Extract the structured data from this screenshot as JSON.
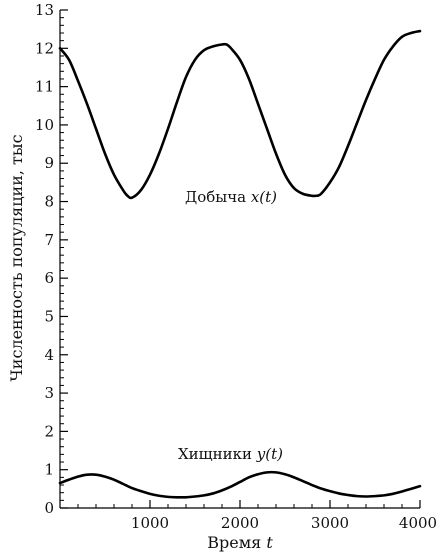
{
  "chart_data": {
    "type": "line",
    "title": "",
    "xlabel": "Время",
    "xlabel_var": "t",
    "ylabel": "Численность популяции, тыс",
    "xlim": [
      0,
      4000
    ],
    "ylim": [
      0,
      13
    ],
    "xticks": [
      1000,
      2000,
      3000,
      4000
    ],
    "yticks": [
      0,
      1,
      2,
      3,
      4,
      5,
      6,
      7,
      8,
      9,
      10,
      11,
      12,
      13
    ],
    "grid": false,
    "legend": "none",
    "series": [
      {
        "name": "Добыча",
        "name_var": "x(t)",
        "color": "#000000",
        "x": [
          0,
          100,
          200,
          300,
          400,
          500,
          600,
          700,
          750,
          800,
          900,
          1000,
          1100,
          1200,
          1300,
          1400,
          1500,
          1600,
          1700,
          1800,
          1850,
          1900,
          2000,
          2100,
          2200,
          2300,
          2400,
          2500,
          2600,
          2700,
          2800,
          2850,
          2900,
          3000,
          3100,
          3200,
          3300,
          3400,
          3500,
          3600,
          3700,
          3800,
          3900,
          4000
        ],
        "y": [
          12.0,
          11.7,
          11.15,
          10.55,
          9.9,
          9.25,
          8.7,
          8.3,
          8.15,
          8.1,
          8.3,
          8.7,
          9.25,
          9.9,
          10.6,
          11.25,
          11.7,
          11.95,
          12.05,
          12.1,
          12.1,
          12.0,
          11.7,
          11.2,
          10.55,
          9.9,
          9.25,
          8.7,
          8.35,
          8.2,
          8.15,
          8.15,
          8.2,
          8.5,
          8.9,
          9.45,
          10.05,
          10.65,
          11.2,
          11.7,
          12.05,
          12.3,
          12.4,
          12.45
        ]
      },
      {
        "name": "Хищники",
        "name_var": "y(t)",
        "color": "#000000",
        "x": [
          0,
          100,
          200,
          300,
          400,
          500,
          600,
          700,
          800,
          900,
          1000,
          1100,
          1200,
          1300,
          1400,
          1500,
          1600,
          1700,
          1800,
          1900,
          2000,
          2100,
          2200,
          2300,
          2400,
          2500,
          2600,
          2700,
          2800,
          2900,
          3000,
          3100,
          3200,
          3300,
          3400,
          3500,
          3600,
          3700,
          3800,
          3900,
          4000
        ],
        "y": [
          0.65,
          0.74,
          0.82,
          0.87,
          0.87,
          0.82,
          0.74,
          0.63,
          0.52,
          0.44,
          0.37,
          0.32,
          0.29,
          0.28,
          0.28,
          0.3,
          0.33,
          0.38,
          0.46,
          0.56,
          0.68,
          0.8,
          0.88,
          0.93,
          0.93,
          0.88,
          0.8,
          0.7,
          0.6,
          0.51,
          0.44,
          0.38,
          0.34,
          0.31,
          0.3,
          0.31,
          0.33,
          0.37,
          0.43,
          0.5,
          0.57
        ]
      }
    ]
  }
}
